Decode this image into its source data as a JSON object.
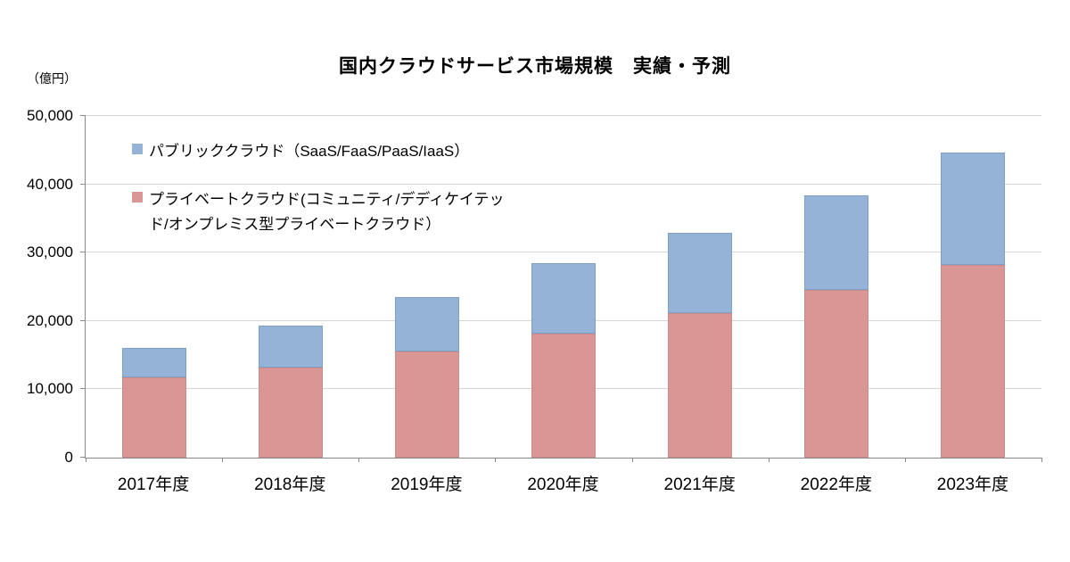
{
  "title": "国内クラウドサービス市場規模　実績・予測",
  "unit_label": "（億円）",
  "chart_data": {
    "type": "bar",
    "stacked": true,
    "title": "国内クラウドサービス市場規模　実績・予測",
    "ylabel": "（億円）",
    "xlabel": "",
    "grid": true,
    "legend_position": "top-left-inside",
    "ylim": [
      0,
      50000
    ],
    "yticks": [
      0,
      10000,
      20000,
      30000,
      40000,
      50000
    ],
    "ytick_labels": [
      "0",
      "10,000",
      "20,000",
      "30,000",
      "40,000",
      "50,000"
    ],
    "categories": [
      "2017年度",
      "2018年度",
      "2019年度",
      "2020年度",
      "2021年度",
      "2022年度",
      "2023年度"
    ],
    "series": [
      {
        "name": "プライベートクラウド(コミュニティ/デディケイテッド/オンプレミス型プライベートクラウド）",
        "legend_lines": [
          "プライベートクラウド(コミュニティ/デディケイテッ",
          "ド/オンプレミス型プライベートクラウド）"
        ],
        "color": "#D99694",
        "values": [
          11800,
          13200,
          15500,
          18200,
          21100,
          24500,
          28200
        ]
      },
      {
        "name": "パブリッククラウド（SaaS/FaaS/PaaS/IaaS）",
        "legend_lines": [
          "パブリッククラウド（SaaS/FaaS/PaaS/IaaS）"
        ],
        "color": "#95B3D7",
        "values": [
          4200,
          6100,
          8000,
          10300,
          11800,
          13900,
          16500
        ]
      }
    ],
    "totals": [
      16000,
      19300,
      23500,
      28500,
      32900,
      38400,
      44700
    ]
  }
}
